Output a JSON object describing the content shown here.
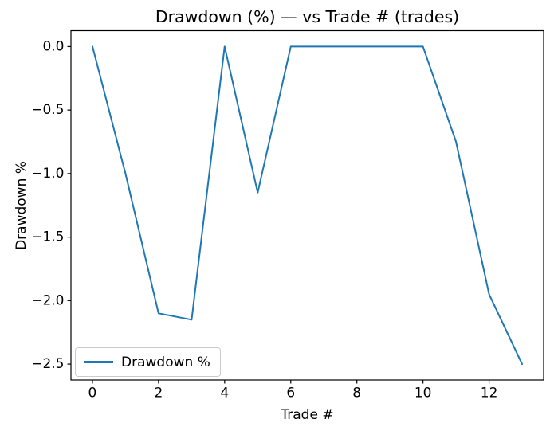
{
  "chart_data": {
    "type": "line",
    "title": "Drawdown (%) — vs Trade # (trades)",
    "xlabel": "Trade #",
    "ylabel": "Drawdown %",
    "x": [
      0,
      1,
      2,
      3,
      4,
      5,
      6,
      7,
      8,
      9,
      10,
      11,
      12,
      13
    ],
    "series": [
      {
        "name": "Drawdown %",
        "color": "#1f77b4",
        "values": [
          0.0,
          -1.0,
          -2.1,
          -2.15,
          0.0,
          -1.15,
          0.0,
          0.0,
          0.0,
          0.0,
          0.0,
          -0.75,
          -1.95,
          -2.5
        ]
      }
    ],
    "xlim": [
      -0.65,
      13.65
    ],
    "ylim": [
      -2.625,
      0.125
    ],
    "xticks": [
      0,
      2,
      4,
      6,
      8,
      10,
      12
    ],
    "yticks": [
      0.0,
      -0.5,
      -1.0,
      -1.5,
      -2.0,
      -2.5
    ],
    "ytick_labels": [
      "0.0",
      "−0.5",
      "−1.0",
      "−1.5",
      "−2.0",
      "−2.5"
    ],
    "grid": false,
    "legend": {
      "position": "lower-left",
      "border_color": "#cccccc",
      "entries": [
        "Drawdown %"
      ]
    },
    "frame_color": "#000000",
    "background_color": "#ffffff"
  }
}
